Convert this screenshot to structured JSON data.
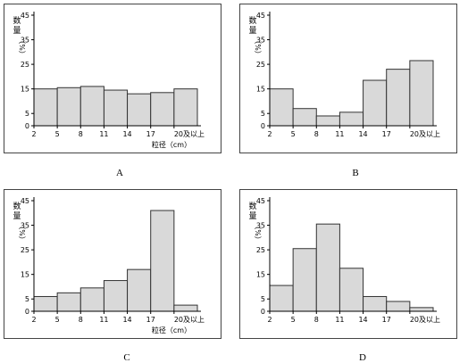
{
  "chart_data": [
    {
      "type": "bar",
      "panel_label": "A",
      "ylabel": "数量（%）",
      "xlabel": "粒径（cm）",
      "categories": [
        "2",
        "5",
        "8",
        "11",
        "14",
        "17",
        "20及以上"
      ],
      "x_ticks": [
        "2",
        "5",
        "8",
        "11",
        "14",
        "17",
        "20及以上"
      ],
      "y_ticks": [
        0,
        5,
        15,
        25,
        35,
        45
      ],
      "ylim": [
        0,
        45
      ],
      "values": [
        15,
        15.5,
        16,
        14.5,
        13,
        13.5,
        15
      ],
      "grid": false
    },
    {
      "type": "bar",
      "panel_label": "B",
      "ylabel": "数量（%）",
      "xlabel": "",
      "categories": [
        "2",
        "5",
        "8",
        "11",
        "14",
        "17",
        "20及以上"
      ],
      "x_ticks": [
        "2",
        "5",
        "8",
        "11",
        "14",
        "17",
        "20及以上"
      ],
      "y_ticks": [
        0,
        5,
        15,
        25,
        35,
        45
      ],
      "ylim": [
        0,
        45
      ],
      "values": [
        15,
        7,
        4,
        5.5,
        18.5,
        23,
        26.5
      ],
      "grid": false
    },
    {
      "type": "bar",
      "panel_label": "C",
      "ylabel": "数量（%）",
      "xlabel": "粒径（cm）",
      "categories": [
        "2",
        "5",
        "8",
        "11",
        "14",
        "17",
        "20及以上"
      ],
      "x_ticks": [
        "2",
        "5",
        "8",
        "11",
        "14",
        "17",
        "20及以上"
      ],
      "y_ticks": [
        0,
        5,
        15,
        25,
        35,
        45
      ],
      "ylim": [
        0,
        45
      ],
      "values": [
        6,
        7.5,
        9.5,
        12.5,
        17,
        41,
        2.5
      ],
      "grid": false
    },
    {
      "type": "bar",
      "panel_label": "D",
      "ylabel": "数量（%）",
      "xlabel": "",
      "categories": [
        "2",
        "5",
        "8",
        "11",
        "14",
        "17",
        "20及以上"
      ],
      "x_ticks": [
        "2",
        "5",
        "8",
        "11",
        "14",
        "17",
        "20及以上"
      ],
      "y_ticks": [
        0,
        5,
        15,
        25,
        35,
        45
      ],
      "ylim": [
        0,
        45
      ],
      "values": [
        10.5,
        25.5,
        35.5,
        17.5,
        6,
        4,
        1.5
      ],
      "grid": false
    }
  ],
  "colors": {
    "bar_fill": "#d9d9d9",
    "bar_stroke": "#333333",
    "axis": "#000000"
  }
}
